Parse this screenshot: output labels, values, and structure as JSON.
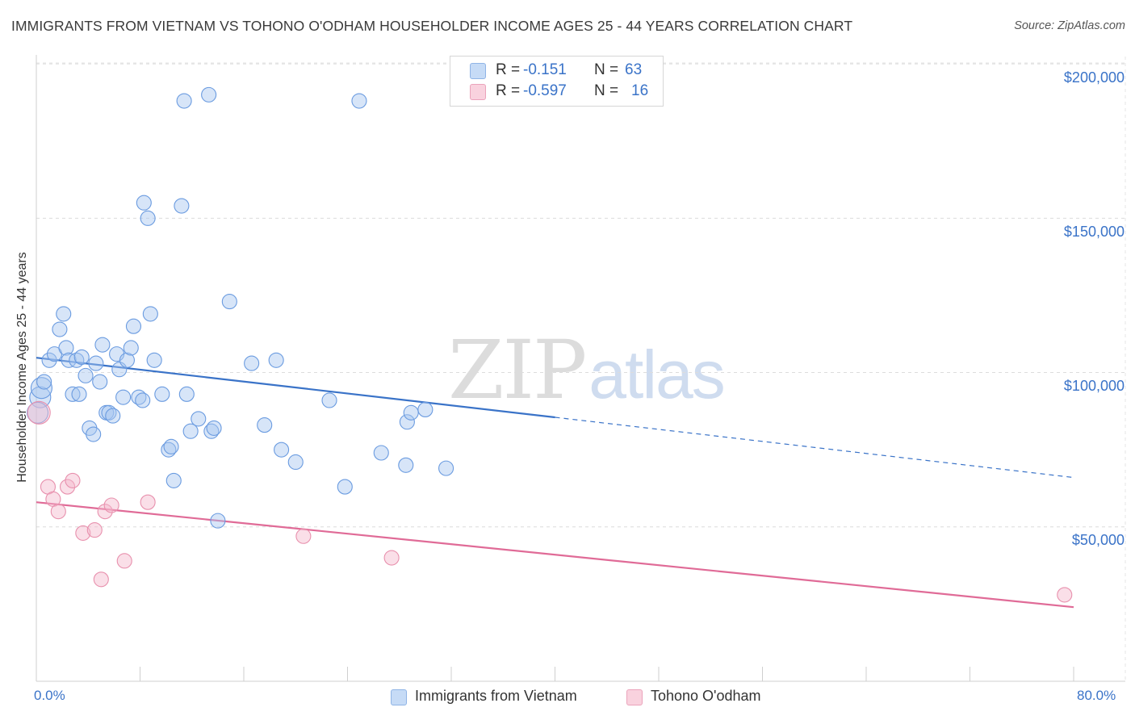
{
  "header": {
    "title": "IMMIGRANTS FROM VIETNAM VS TOHONO O'ODHAM HOUSEHOLDER INCOME AGES 25 - 44 YEARS CORRELATION CHART",
    "source": "Source: ZipAtlas.com"
  },
  "watermark": {
    "zip": "ZIP",
    "atlas": "atlas"
  },
  "legend": {
    "rows": [
      {
        "r_label": "R =",
        "r_value": "-0.151",
        "n_label": "N =",
        "n_value": "63",
        "color": "#a7c6ef"
      },
      {
        "r_label": "R =",
        "r_value": "-0.597",
        "n_label": "N =",
        "n_value": "16",
        "color": "#f4b8cb"
      }
    ]
  },
  "bottom_legend": {
    "items": [
      {
        "label": "Immigrants from Vietnam",
        "color": "#a7c6ef"
      },
      {
        "label": "Tohono O'odham",
        "color": "#f4b8cb"
      }
    ]
  },
  "chart_data": {
    "type": "scatter",
    "title": "IMMIGRANTS FROM VIETNAM VS TOHONO O'ODHAM HOUSEHOLDER INCOME AGES 25 - 44 YEARS CORRELATION CHART",
    "xlabel": "",
    "ylabel": "Householder Income Ages 25 - 44 years",
    "xlim": [
      0,
      80
    ],
    "ylim": [
      0,
      205000
    ],
    "x_tick_labels": [
      "0.0%",
      "80.0%"
    ],
    "y_ticks": [
      50000,
      100000,
      150000,
      200000
    ],
    "y_tick_labels": [
      "$50,000",
      "$100,000",
      "$150,000",
      "$200,000"
    ],
    "grid": true,
    "legend_position": "top-center",
    "series": [
      {
        "name": "Immigrants from Vietnam",
        "color": "#6a9be0",
        "fill": "#a7c6ef",
        "points": [
          [
            0.3,
            92000
          ],
          [
            0.4,
            95000
          ],
          [
            0.6,
            97000
          ],
          [
            1.0,
            104000
          ],
          [
            1.4,
            106000
          ],
          [
            1.8,
            114000
          ],
          [
            2.1,
            119000
          ],
          [
            2.3,
            108000
          ],
          [
            2.5,
            104000
          ],
          [
            2.8,
            93000
          ],
          [
            3.1,
            104000
          ],
          [
            3.3,
            93000
          ],
          [
            3.5,
            105000
          ],
          [
            3.8,
            99000
          ],
          [
            4.1,
            82000
          ],
          [
            4.4,
            80000
          ],
          [
            4.6,
            103000
          ],
          [
            4.9,
            97000
          ],
          [
            5.1,
            109000
          ],
          [
            5.4,
            87000
          ],
          [
            5.6,
            87000
          ],
          [
            5.9,
            86000
          ],
          [
            6.2,
            106000
          ],
          [
            6.4,
            101000
          ],
          [
            6.7,
            92000
          ],
          [
            7.0,
            104000
          ],
          [
            7.3,
            108000
          ],
          [
            7.5,
            115000
          ],
          [
            7.9,
            92000
          ],
          [
            8.2,
            91000
          ],
          [
            8.3,
            155000
          ],
          [
            8.6,
            150000
          ],
          [
            8.8,
            119000
          ],
          [
            9.1,
            104000
          ],
          [
            9.7,
            93000
          ],
          [
            10.2,
            75000
          ],
          [
            10.4,
            76000
          ],
          [
            10.6,
            65000
          ],
          [
            11.2,
            154000
          ],
          [
            11.4,
            188000
          ],
          [
            11.6,
            93000
          ],
          [
            11.9,
            81000
          ],
          [
            12.5,
            85000
          ],
          [
            13.3,
            190000
          ],
          [
            13.5,
            81000
          ],
          [
            13.7,
            82000
          ],
          [
            14.0,
            52000
          ],
          [
            14.9,
            123000
          ],
          [
            16.6,
            103000
          ],
          [
            17.6,
            83000
          ],
          [
            18.5,
            104000
          ],
          [
            18.9,
            75000
          ],
          [
            20.0,
            71000
          ],
          [
            22.6,
            91000
          ],
          [
            23.8,
            63000
          ],
          [
            24.9,
            188000
          ],
          [
            26.6,
            74000
          ],
          [
            28.5,
            70000
          ],
          [
            28.6,
            84000
          ],
          [
            28.9,
            87000
          ],
          [
            30.0,
            88000
          ],
          [
            31.6,
            69000
          ],
          [
            0.1,
            87000
          ]
        ]
      },
      {
        "name": "Tohono O'odham",
        "color": "#e890ad",
        "fill": "#f4b8cb",
        "points": [
          [
            0.2,
            87000
          ],
          [
            0.9,
            63000
          ],
          [
            1.3,
            59000
          ],
          [
            1.7,
            55000
          ],
          [
            2.4,
            63000
          ],
          [
            2.8,
            65000
          ],
          [
            3.6,
            48000
          ],
          [
            4.5,
            49000
          ],
          [
            5.0,
            33000
          ],
          [
            5.3,
            55000
          ],
          [
            5.8,
            57000
          ],
          [
            6.8,
            39000
          ],
          [
            8.6,
            58000
          ],
          [
            20.6,
            47000
          ],
          [
            27.4,
            40000
          ],
          [
            79.3,
            28000
          ]
        ]
      }
    ],
    "trendlines": [
      {
        "series": "Immigrants from Vietnam",
        "x_start": 0,
        "y_start": 104800,
        "x_solid_end": 40,
        "y_solid_end": 85500,
        "x_end": 80,
        "y_end": 66000,
        "color": "#3a73c8"
      },
      {
        "series": "Tohono O'odham",
        "x_start": 0,
        "y_start": 58000,
        "x_end": 80,
        "y_end": 24000,
        "color": "#e06b97"
      }
    ]
  }
}
